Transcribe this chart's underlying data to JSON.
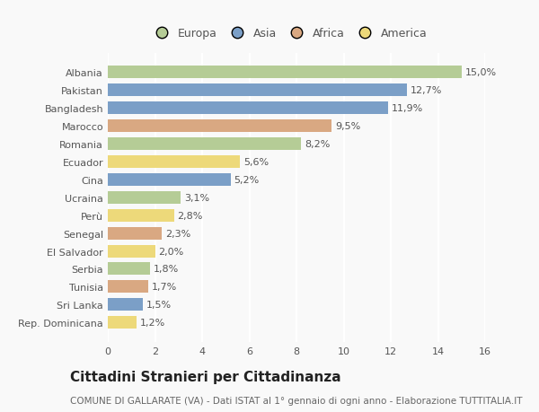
{
  "countries": [
    "Albania",
    "Pakistan",
    "Bangladesh",
    "Marocco",
    "Romania",
    "Ecuador",
    "Cina",
    "Ucraina",
    "Perù",
    "Senegal",
    "El Salvador",
    "Serbia",
    "Tunisia",
    "Sri Lanka",
    "Rep. Dominicana"
  ],
  "values": [
    15.0,
    12.7,
    11.9,
    9.5,
    8.2,
    5.6,
    5.2,
    3.1,
    2.8,
    2.3,
    2.0,
    1.8,
    1.7,
    1.5,
    1.2
  ],
  "labels": [
    "15,0%",
    "12,7%",
    "11,9%",
    "9,5%",
    "8,2%",
    "5,6%",
    "5,2%",
    "3,1%",
    "2,8%",
    "2,3%",
    "2,0%",
    "1,8%",
    "1,7%",
    "1,5%",
    "1,2%"
  ],
  "continents": [
    "Europa",
    "Asia",
    "Asia",
    "Africa",
    "Europa",
    "America",
    "Asia",
    "Europa",
    "America",
    "Africa",
    "America",
    "Europa",
    "Africa",
    "Asia",
    "America"
  ],
  "colors": {
    "Europa": "#b5cc96",
    "Asia": "#7b9fc7",
    "Africa": "#d9a882",
    "America": "#edd97a"
  },
  "legend_order": [
    "Europa",
    "Asia",
    "Africa",
    "America"
  ],
  "title": "Cittadini Stranieri per Cittadinanza",
  "subtitle": "COMUNE DI GALLARATE (VA) - Dati ISTAT al 1° gennaio di ogni anno - Elaborazione TUTTITALIA.IT",
  "xlim": [
    0,
    16
  ],
  "xticks": [
    0,
    2,
    4,
    6,
    8,
    10,
    12,
    14,
    16
  ],
  "background_color": "#f9f9f9",
  "bar_height": 0.7,
  "grid_color": "#ffffff",
  "title_fontsize": 11,
  "subtitle_fontsize": 7.5,
  "label_fontsize": 8,
  "tick_fontsize": 8,
  "legend_fontsize": 9
}
